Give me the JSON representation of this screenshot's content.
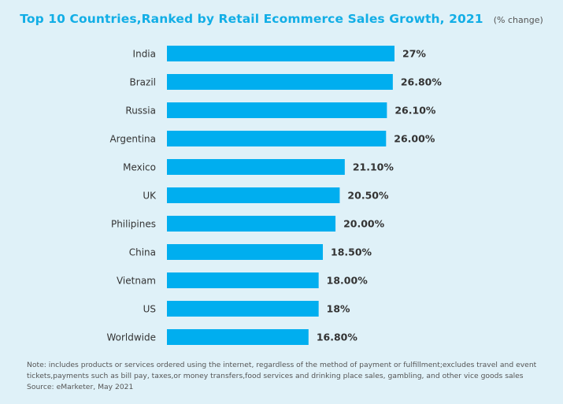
{
  "chart_data": {
    "type": "bar",
    "orientation": "horizontal",
    "title": "Top 10 Countries,Ranked by Retail Ecommerce Sales Growth, 2021",
    "subtitle": "(% change)",
    "categories": [
      "India",
      "Brazil",
      "Russia",
      "Argentina",
      "Mexico",
      "UK",
      "Philipines",
      "China",
      "Vietnam",
      "US",
      "Worldwide"
    ],
    "values": [
      27,
      26.8,
      26.1,
      26.0,
      21.1,
      20.5,
      20.0,
      18.5,
      18.0,
      18,
      16.8
    ],
    "data_labels": [
      "27%",
      "26.80%",
      "26.10%",
      "26.00%",
      "21.10%",
      "20.50%",
      "20.00%",
      "18.50%",
      "18.00%",
      "18%",
      "16.80%"
    ],
    "xlim": [
      0,
      27
    ],
    "bar_color": "#00aeef",
    "grid": false,
    "legend": "none"
  },
  "note": {
    "line1": "Note: includes products or services ordered using the internet, regardless of the method of payment or fulfillment;excludes travel and event",
    "line2": "tickets,payments such as bill pay, taxes,or money transfers,food services and drinking place sales, gambling, and other vice goods sales",
    "source": "Source: eMarketer, May 2021"
  }
}
